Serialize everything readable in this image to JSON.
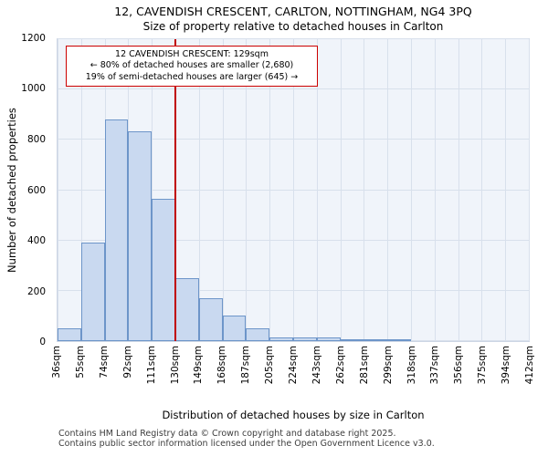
{
  "header": {
    "title": "12, CAVENDISH CRESCENT, CARLTON, NOTTINGHAM, NG4 3PQ",
    "subtitle": "Size of property relative to detached houses in Carlton"
  },
  "annotation": {
    "line1": "12 CAVENDISH CRESCENT: 129sqm",
    "line2": "← 80% of detached houses are smaller (2,680)",
    "line3": "19% of semi-detached houses are larger (645) →"
  },
  "chart_data": {
    "type": "bar",
    "title": "12, CAVENDISH CRESCENT, CARLTON, NOTTINGHAM, NG4 3PQ",
    "subtitle": "Size of property relative to detached houses in Carlton",
    "xlabel": "Distribution of detached houses by size in Carlton",
    "ylabel": "Number of detached properties",
    "ylim": [
      0,
      1200
    ],
    "yticks": [
      0,
      200,
      400,
      600,
      800,
      1000,
      1200
    ],
    "grid": true,
    "x_tick_labels": [
      "36sqm",
      "55sqm",
      "74sqm",
      "92sqm",
      "111sqm",
      "130sqm",
      "149sqm",
      "168sqm",
      "187sqm",
      "205sqm",
      "224sqm",
      "243sqm",
      "262sqm",
      "281sqm",
      "299sqm",
      "318sqm",
      "337sqm",
      "356sqm",
      "375sqm",
      "394sqm",
      "412sqm"
    ],
    "bin_edges": [
      36,
      55,
      74,
      92,
      111,
      130,
      149,
      168,
      187,
      205,
      224,
      243,
      262,
      281,
      299,
      318,
      337,
      356,
      375,
      394,
      412
    ],
    "values": [
      50,
      390,
      880,
      835,
      565,
      250,
      170,
      100,
      50,
      15,
      15,
      15,
      8,
      5,
      8,
      0,
      0,
      0,
      0,
      0
    ],
    "marker": {
      "value": 129,
      "label": "12 CAVENDISH CRESCENT: 129sqm"
    },
    "colors": {
      "bar_fill": "#c9d9f0",
      "bar_edge": "#6d95c9",
      "marker": "#c00000",
      "grid": "#d8e0ec",
      "plot_bg": "#f0f4fa",
      "annotation_border": "#cc0000"
    }
  },
  "footer": {
    "line1": "Contains HM Land Registry data © Crown copyright and database right 2025.",
    "line2": "Contains public sector information licensed under the Open Government Licence v3.0."
  }
}
